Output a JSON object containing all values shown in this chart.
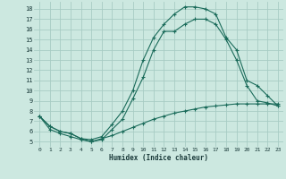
{
  "title": "",
  "xlabel": "Humidex (Indice chaleur)",
  "bg_color": "#cce8e0",
  "grid_color": "#a8ccc4",
  "line_color": "#1a6b5a",
  "xlim": [
    -0.5,
    23.5
  ],
  "ylim": [
    4.5,
    18.7
  ],
  "xticks": [
    0,
    1,
    2,
    3,
    4,
    5,
    6,
    7,
    8,
    9,
    10,
    11,
    12,
    13,
    14,
    15,
    16,
    17,
    18,
    19,
    20,
    21,
    22,
    23
  ],
  "yticks": [
    5,
    6,
    7,
    8,
    9,
    10,
    11,
    12,
    13,
    14,
    15,
    16,
    17,
    18
  ],
  "line1_x": [
    0,
    1,
    2,
    3,
    4,
    5,
    6,
    7,
    8,
    9,
    10,
    11,
    12,
    13,
    14,
    15,
    16,
    17,
    18,
    19,
    20,
    21,
    22,
    23
  ],
  "line1_y": [
    7.5,
    6.5,
    6.0,
    5.8,
    5.3,
    5.0,
    5.2,
    6.2,
    7.2,
    9.2,
    11.3,
    14.0,
    15.8,
    15.8,
    16.5,
    17.0,
    17.0,
    16.5,
    15.0,
    13.0,
    10.5,
    9.0,
    8.8,
    8.5
  ],
  "line2_x": [
    0,
    1,
    2,
    3,
    4,
    5,
    6,
    7,
    8,
    9,
    10,
    11,
    12,
    13,
    14,
    15,
    16,
    17,
    18,
    19,
    20,
    21,
    22,
    23
  ],
  "line2_y": [
    7.5,
    6.5,
    6.0,
    5.8,
    5.3,
    5.2,
    5.5,
    6.7,
    8.0,
    10.0,
    13.0,
    15.2,
    16.5,
    17.5,
    18.2,
    18.2,
    18.0,
    17.5,
    15.2,
    14.0,
    11.0,
    10.5,
    9.5,
    8.5
  ],
  "line3_x": [
    0,
    1,
    2,
    3,
    4,
    5,
    6,
    7,
    8,
    9,
    10,
    11,
    12,
    13,
    14,
    15,
    16,
    17,
    18,
    19,
    20,
    21,
    22,
    23
  ],
  "line3_y": [
    7.5,
    6.2,
    5.8,
    5.5,
    5.2,
    5.0,
    5.3,
    5.6,
    6.0,
    6.4,
    6.8,
    7.2,
    7.5,
    7.8,
    8.0,
    8.2,
    8.4,
    8.5,
    8.6,
    8.7,
    8.7,
    8.7,
    8.7,
    8.7
  ],
  "figsize": [
    3.2,
    2.0
  ],
  "dpi": 100
}
